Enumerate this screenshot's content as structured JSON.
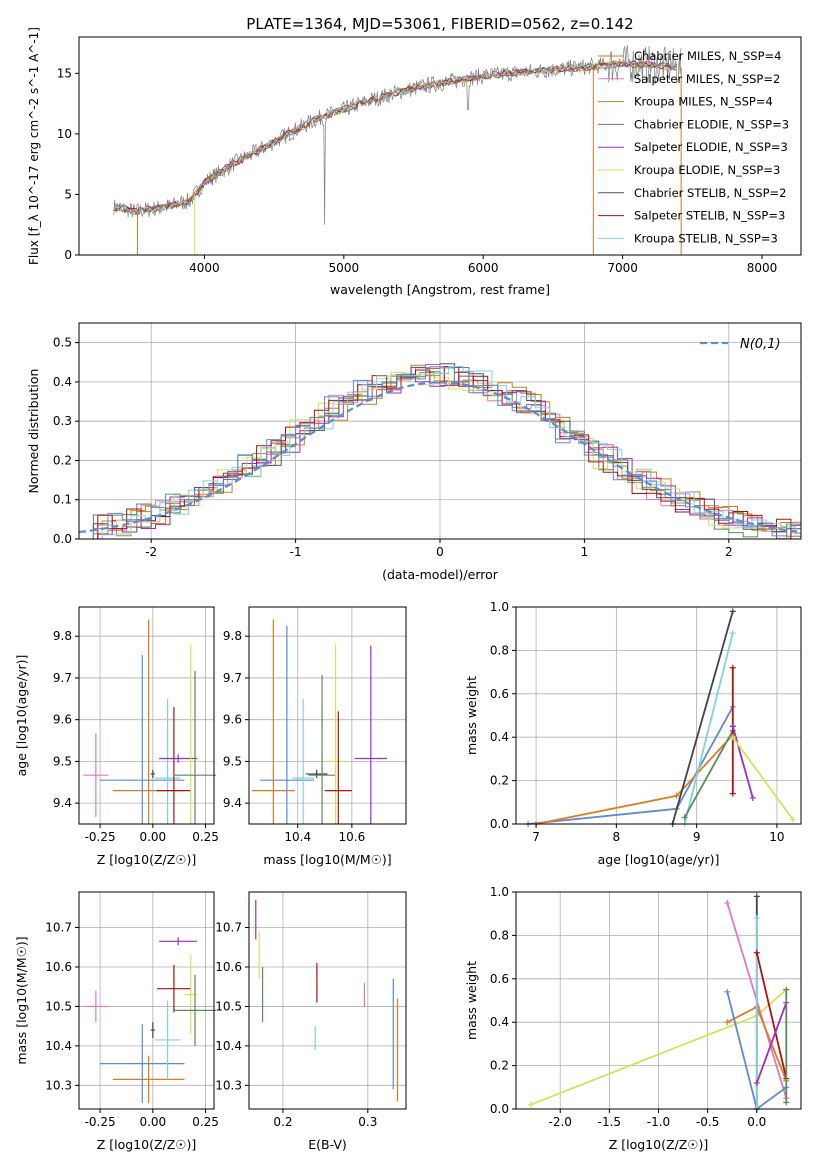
{
  "figure_title": "PLATE=1364, MJD=53061, FIBERID=0562, z=0.142",
  "chart_data": [
    {
      "id": "spectrum",
      "type": "line",
      "xlabel": "wavelength [Angstrom, rest frame]",
      "ylabel": "Flux [f_λ 10^-17 erg cm^-2 s^-1 A^-1]",
      "xlim": [
        3100,
        8280
      ],
      "ylim": [
        0,
        18
      ],
      "xticks": [
        4000,
        5000,
        6000,
        7000,
        8000
      ],
      "yticks": [
        0,
        5,
        10,
        15
      ],
      "legend_placement": "upper-right",
      "data_envelope": {
        "x": [
          3350,
          3500,
          3700,
          3900,
          4000,
          4200,
          4400,
          4600,
          4800,
          5000,
          5200,
          5400,
          5600,
          5800,
          6000,
          6200,
          6400,
          6600,
          6800,
          7000,
          7200,
          7400
        ],
        "y": [
          4.0,
          3.6,
          3.9,
          4.5,
          6.0,
          7.5,
          8.7,
          10.0,
          11.2,
          12.0,
          12.8,
          13.5,
          14.0,
          14.4,
          14.8,
          15.0,
          15.2,
          15.4,
          15.6,
          15.8,
          15.7,
          15.5
        ]
      },
      "series": [
        {
          "name": "Chabrier MILES, N_SSP=4",
          "color": "#cc7a2a"
        },
        {
          "name": "Salpeter MILES, N_SSP=2",
          "color": "#e377c2"
        },
        {
          "name": "Kroupa MILES, N_SSP=4",
          "color": "#c9830f"
        },
        {
          "name": "Chabrier ELODIE, N_SSP=3",
          "color": "#5b8a5b"
        },
        {
          "name": "Salpeter ELODIE, N_SSP=3",
          "color": "#9b30c0"
        },
        {
          "name": "Kroupa ELODIE, N_SSP=3",
          "color": "#d4e35a"
        },
        {
          "name": "Chabrier STELIB, N_SSP=2",
          "color": "#555555"
        },
        {
          "name": "Salpeter STELIB, N_SSP=3",
          "color": "#b21010"
        },
        {
          "name": "Kroupa STELIB, N_SSP=3",
          "color": "#7fd3e0"
        }
      ]
    },
    {
      "id": "residuals",
      "type": "line",
      "xlabel": "(data-model)/error",
      "ylabel": "Normed distribution",
      "xlim": [
        -2.5,
        2.5
      ],
      "ylim": [
        0,
        0.55
      ],
      "xticks": [
        -2,
        -1,
        0,
        1,
        2
      ],
      "yticks": [
        0.0,
        0.1,
        0.2,
        0.3,
        0.4,
        0.5
      ],
      "grid": true,
      "legend_entry": "N(0,1)",
      "gaussian": {
        "mean": 0,
        "sigma": 1,
        "color": "#5b8bd6"
      }
    },
    {
      "id": "age_vs_Z",
      "type": "scatter",
      "xlabel": "Z [log10(Z/Z☉)]",
      "ylabel": "age [log10(age/yr)]",
      "xlim": [
        -0.35,
        0.29
      ],
      "ylim": [
        9.35,
        9.87
      ],
      "xticks": [
        -0.25,
        0.0,
        0.25
      ],
      "yticks": [
        9.4,
        9.5,
        9.6,
        9.7,
        9.8
      ],
      "grid": true,
      "points": [
        {
          "x": -0.27,
          "y": 9.467,
          "xerr": 0.06,
          "yerr": 0.1,
          "color": "#e377c2"
        },
        {
          "x": -0.02,
          "y": 9.43,
          "xerr": 0.17,
          "yerr": 0.41,
          "color": "#e07b20"
        },
        {
          "x": -0.05,
          "y": 9.455,
          "xerr": 0.2,
          "yerr": 0.3,
          "color": "#5b8bd6"
        },
        {
          "x": 0.0,
          "y": 9.47,
          "xerr": 0.01,
          "yerr": 0.01,
          "color": "#444444"
        },
        {
          "x": 0.07,
          "y": 9.46,
          "xerr": 0.06,
          "yerr": 0.19,
          "color": "#7fd3e0"
        },
        {
          "x": 0.1,
          "y": 9.43,
          "xerr": 0.08,
          "yerr": 0.2,
          "color": "#b21010"
        },
        {
          "x": 0.12,
          "y": 9.507,
          "xerr": 0.09,
          "yerr": 0.01,
          "color": "#9b30c0"
        },
        {
          "x": 0.18,
          "y": 9.5,
          "xerr": 0.03,
          "yerr": 0.28,
          "color": "#d4e35a"
        },
        {
          "x": 0.2,
          "y": 9.467,
          "xerr": 0.1,
          "yerr": 0.25,
          "color": "#5b8a5b"
        }
      ]
    },
    {
      "id": "age_vs_mass",
      "type": "scatter",
      "xlabel": "mass [log10(M/M☉)]",
      "ylabel": "",
      "xlim": [
        10.22,
        10.8
      ],
      "ylim": [
        9.35,
        9.87
      ],
      "xticks": [
        10.4,
        10.6
      ],
      "yticks": [
        9.4,
        9.5,
        9.6,
        9.7,
        9.8
      ],
      "grid": true,
      "points": [
        {
          "x": 10.31,
          "y": 9.43,
          "xerr": 0.08,
          "yerr": 0.41,
          "color": "#e07b20"
        },
        {
          "x": 10.36,
          "y": 9.455,
          "xerr": 0.1,
          "yerr": 0.37,
          "color": "#5b8bd6"
        },
        {
          "x": 10.42,
          "y": 9.46,
          "xerr": 0.04,
          "yerr": 0.19,
          "color": "#7fd3e0"
        },
        {
          "x": 10.47,
          "y": 9.47,
          "xerr": 0.04,
          "yerr": 0.01,
          "color": "#444444"
        },
        {
          "x": 10.49,
          "y": 9.467,
          "xerr": 0.05,
          "yerr": 0.24,
          "color": "#5b8a5b"
        },
        {
          "x": 10.54,
          "y": 9.5,
          "xerr": 0.03,
          "yerr": 0.28,
          "color": "#d4e35a"
        },
        {
          "x": 10.55,
          "y": 9.43,
          "xerr": 0.05,
          "yerr": 0.19,
          "color": "#b21010"
        },
        {
          "x": 10.67,
          "y": 9.507,
          "xerr": 0.06,
          "yerr": 0.27,
          "color": "#9b30c0"
        }
      ]
    },
    {
      "id": "weight_vs_age",
      "type": "line",
      "xlabel": "age [log10(age/yr)]",
      "ylabel": "mass weight",
      "xlim": [
        6.75,
        10.3
      ],
      "ylim": [
        0,
        1
      ],
      "xticks": [
        7,
        8,
        9,
        10
      ],
      "yticks": [
        0.0,
        0.2,
        0.4,
        0.6,
        0.8,
        1.0
      ],
      "grid": true,
      "series_points": [
        {
          "color": "#5b8bd6",
          "x": [
            6.9,
            8.75,
            9.45
          ],
          "y": [
            0.0,
            0.07,
            0.54
          ]
        },
        {
          "color": "#e07b20",
          "x": [
            7.0,
            8.75,
            9.45
          ],
          "y": [
            0.0,
            0.13,
            0.41
          ]
        },
        {
          "color": "#444444",
          "x": [
            8.7,
            9.45
          ],
          "y": [
            0.0,
            0.98
          ]
        },
        {
          "color": "#7fd3e0",
          "x": [
            8.85,
            9.45
          ],
          "y": [
            0.0,
            0.88
          ]
        },
        {
          "color": "#5b8a5b",
          "x": [
            8.85,
            9.45
          ],
          "y": [
            0.03,
            0.43
          ]
        },
        {
          "color": "#b21010",
          "x": [
            9.45,
            9.45,
            9.45
          ],
          "y": [
            0.14,
            0.45,
            0.72
          ]
        },
        {
          "color": "#9b30c0",
          "x": [
            9.45,
            9.7
          ],
          "y": [
            0.45,
            0.12
          ]
        },
        {
          "color": "#d4e35a",
          "x": [
            9.45,
            10.2
          ],
          "y": [
            0.4,
            0.02
          ]
        }
      ]
    },
    {
      "id": "mass_vs_Z",
      "type": "scatter",
      "xlabel": "Z [log10(Z/Z☉)]",
      "ylabel": "mass [log10(M/M☉)]",
      "xlim": [
        -0.35,
        0.29
      ],
      "ylim": [
        10.24,
        10.79
      ],
      "xticks": [
        -0.25,
        0.0,
        0.25
      ],
      "yticks": [
        10.3,
        10.4,
        10.5,
        10.6,
        10.7
      ],
      "grid": true,
      "points": [
        {
          "x": -0.27,
          "y": 10.5,
          "xerr": 0.06,
          "yerr": 0.04,
          "color": "#e377c2"
        },
        {
          "x": -0.02,
          "y": 10.315,
          "xerr": 0.17,
          "yerr": 0.06,
          "color": "#e07b20"
        },
        {
          "x": -0.05,
          "y": 10.355,
          "xerr": 0.2,
          "yerr": 0.1,
          "color": "#5b8bd6"
        },
        {
          "x": 0.0,
          "y": 10.44,
          "xerr": 0.01,
          "yerr": 0.02,
          "color": "#444444"
        },
        {
          "x": 0.07,
          "y": 10.415,
          "xerr": 0.06,
          "yerr": 0.1,
          "color": "#7fd3e0"
        },
        {
          "x": 0.1,
          "y": 10.545,
          "xerr": 0.08,
          "yerr": 0.06,
          "color": "#b21010"
        },
        {
          "x": 0.12,
          "y": 10.665,
          "xerr": 0.09,
          "yerr": 0.01,
          "color": "#9b30c0"
        },
        {
          "x": 0.18,
          "y": 10.53,
          "xerr": 0.03,
          "yerr": 0.1,
          "color": "#d4e35a"
        },
        {
          "x": 0.2,
          "y": 10.49,
          "xerr": 0.1,
          "yerr": 0.09,
          "color": "#5b8a5b"
        }
      ]
    },
    {
      "id": "mass_vs_ebv",
      "type": "scatter",
      "xlabel": "E(B-V)",
      "ylabel": "",
      "xlim": [
        0.16,
        0.345
      ],
      "ylim": [
        10.24,
        10.79
      ],
      "xticks": [
        0.2,
        0.3
      ],
      "yticks": [
        10.3,
        10.4,
        10.5,
        10.6,
        10.7
      ],
      "grid": true,
      "points": [
        {
          "x": 0.168,
          "y": 10.72,
          "xerr": 0,
          "yerr": 0.05,
          "color": "#9b30c0"
        },
        {
          "x": 0.172,
          "y": 10.63,
          "xerr": 0,
          "yerr": 0.06,
          "color": "#d4e35a"
        },
        {
          "x": 0.176,
          "y": 10.53,
          "xerr": 0,
          "yerr": 0.07,
          "color": "#5b8a5b"
        },
        {
          "x": 0.238,
          "y": 10.42,
          "xerr": 0,
          "yerr": 0.03,
          "color": "#7fd3e0"
        },
        {
          "x": 0.24,
          "y": 10.56,
          "xerr": 0,
          "yerr": 0.05,
          "color": "#b21010"
        },
        {
          "x": 0.296,
          "y": 10.53,
          "xerr": 0,
          "yerr": 0.03,
          "color": "#e377c2"
        },
        {
          "x": 0.33,
          "y": 10.43,
          "xerr": 0,
          "yerr": 0.14,
          "color": "#5b8bd6"
        },
        {
          "x": 0.335,
          "y": 10.39,
          "xerr": 0,
          "yerr": 0.13,
          "color": "#e07b20"
        }
      ]
    },
    {
      "id": "weight_vs_Z",
      "type": "line",
      "xlabel": "Z [log10(Z/Z☉)]",
      "ylabel": "mass weight",
      "xlim": [
        -2.45,
        0.45
      ],
      "ylim": [
        0,
        1
      ],
      "xticks": [
        -2.0,
        -1.5,
        -1.0,
        -0.5,
        0.0
      ],
      "yticks": [
        0.0,
        0.2,
        0.4,
        0.6,
        0.8,
        1.0
      ],
      "grid": true,
      "series_points": [
        {
          "color": "#d4e35a",
          "x": [
            -2.3,
            0.0,
            0.3
          ],
          "y": [
            0.02,
            0.43,
            0.55
          ]
        },
        {
          "color": "#e377c2",
          "x": [
            -0.3,
            0.3
          ],
          "y": [
            0.95,
            0.05
          ]
        },
        {
          "color": "#e07b20",
          "x": [
            -0.3,
            0.0,
            0.3
          ],
          "y": [
            0.4,
            0.47,
            0.13
          ]
        },
        {
          "color": "#5b8bd6",
          "x": [
            -0.3,
            0.0,
            0.3
          ],
          "y": [
            0.54,
            0.0,
            0.1
          ]
        },
        {
          "color": "#444444",
          "x": [
            0.0,
            0.0
          ],
          "y": [
            0.0,
            0.98
          ]
        },
        {
          "color": "#7fd3e0",
          "x": [
            0.0,
            0.0
          ],
          "y": [
            0.0,
            0.88
          ]
        },
        {
          "color": "#b21010",
          "x": [
            0.0,
            0.3
          ],
          "y": [
            0.72,
            0.14
          ]
        },
        {
          "color": "#9b30c0",
          "x": [
            0.0,
            0.3
          ],
          "y": [
            0.12,
            0.49
          ]
        },
        {
          "color": "#5b8a5b",
          "x": [
            0.3,
            0.3
          ],
          "y": [
            0.03,
            0.55
          ]
        }
      ]
    }
  ]
}
